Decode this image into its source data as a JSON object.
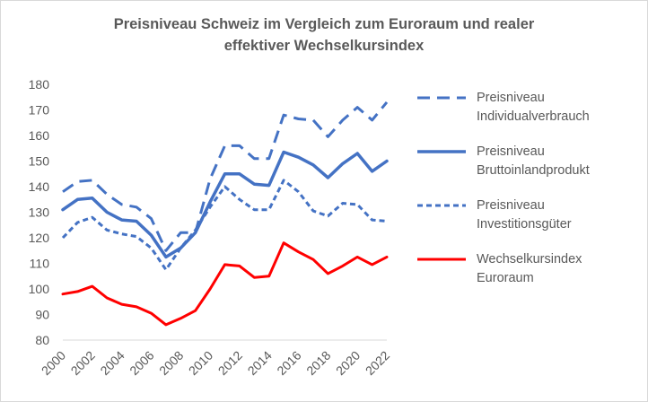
{
  "chart_data": {
    "type": "line",
    "title_lines": [
      "Preisniveau Schweiz im Vergleich zum Euroraum  und realer",
      "effektiver Wechselkursindex"
    ],
    "x": [
      2000,
      2001,
      2002,
      2003,
      2004,
      2005,
      2006,
      2007,
      2008,
      2009,
      2010,
      2011,
      2012,
      2013,
      2014,
      2015,
      2016,
      2017,
      2018,
      2019,
      2020,
      2021,
      2022
    ],
    "x_tick_labels": [
      "2000",
      "2002",
      "2004",
      "2006",
      "2008",
      "2010",
      "2012",
      "2014",
      "2016",
      "2018",
      "2020",
      "2022"
    ],
    "y_tick_labels": [
      "80",
      "90",
      "100",
      "110",
      "120",
      "130",
      "140",
      "150",
      "160",
      "170",
      "180"
    ],
    "ylim": [
      80,
      180
    ],
    "grid": false,
    "legend_position": "right",
    "series": [
      {
        "name_lines": [
          "Preisniveau",
          "Individualverbrauch"
        ],
        "color": "#4472c4",
        "style": "long-dash",
        "values": [
          138,
          142,
          142.5,
          137,
          133,
          132,
          127.5,
          115,
          122,
          122,
          143,
          156,
          156,
          151,
          151,
          168,
          166.5,
          166,
          159.5,
          166,
          171,
          166,
          173
        ]
      },
      {
        "name_lines": [
          "Preisniveau",
          "Bruttoinlandprodukt"
        ],
        "color": "#4472c4",
        "style": "solid",
        "values": [
          131,
          135,
          135.5,
          130,
          127,
          126.5,
          121,
          112.5,
          116,
          122,
          134,
          145,
          145,
          141,
          140.5,
          153.5,
          151.5,
          148.5,
          143.5,
          149,
          153,
          146,
          150
        ]
      },
      {
        "name_lines": [
          "Preisniveau",
          "Investitionsgüter"
        ],
        "color": "#4472c4",
        "style": "short-dash",
        "values": [
          120,
          126,
          128,
          123,
          121.5,
          120.5,
          116,
          107.5,
          116,
          123,
          132,
          140,
          135,
          131,
          131,
          142.5,
          138,
          130.5,
          128.5,
          133.5,
          133,
          127,
          126.5
        ]
      },
      {
        "name_lines": [
          "Wechselkursindex",
          "Euroraum"
        ],
        "color": "#ff0000",
        "style": "solid",
        "values": [
          98,
          99,
          101,
          96.5,
          94,
          93,
          90.5,
          86,
          88.5,
          91.5,
          100,
          109.5,
          109,
          104.5,
          105,
          118,
          114.5,
          111.5,
          106,
          109,
          112.5,
          109.5,
          112.5
        ]
      }
    ]
  }
}
